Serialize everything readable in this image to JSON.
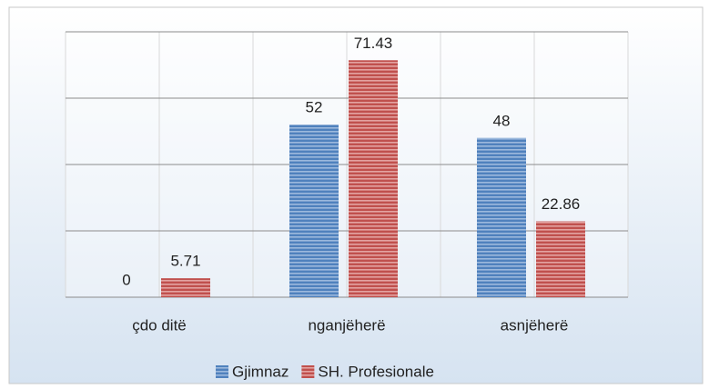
{
  "chart_data": {
    "type": "bar",
    "categories": [
      "çdo ditë",
      "nganjëherë",
      "asnjëherë"
    ],
    "series": [
      {
        "name": "Gjimnaz",
        "color": "#4f81bd",
        "values": [
          0,
          52,
          48
        ]
      },
      {
        "name": "SH. Profesionale",
        "color": "#c0504d",
        "values": [
          5.71,
          71.43,
          22.86
        ]
      }
    ],
    "ylim": [
      0,
      80
    ],
    "yticks": [
      0,
      20,
      40,
      60,
      80
    ],
    "grid": true,
    "legend": "bottom"
  }
}
